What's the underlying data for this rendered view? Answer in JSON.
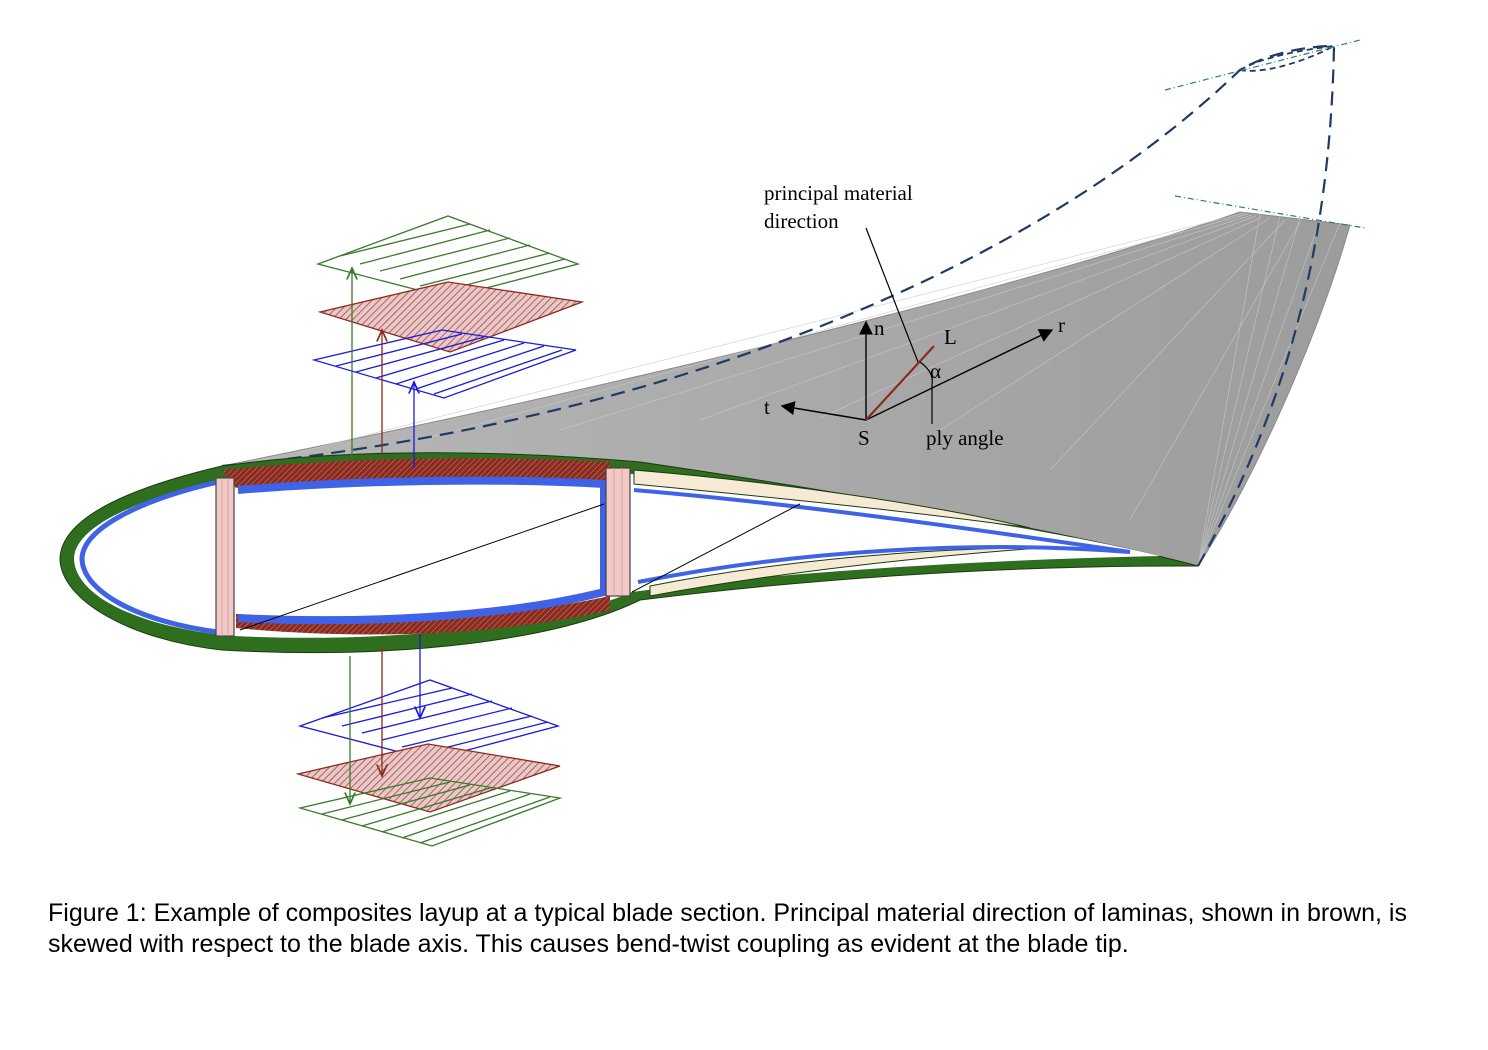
{
  "labels": {
    "principal_line1": "principal material",
    "principal_line2": "direction",
    "n": "n",
    "L": "L",
    "r": "r",
    "t": "t",
    "S": "S",
    "alpha": "α",
    "ply_angle": "ply angle"
  },
  "caption": "Figure 1: Example of composites layup at a typical blade section. Principal material direction of laminas, shown in brown, is skewed with respect to the blade axis.  This causes bend-twist coupling as evident at the blade tip.",
  "colors": {
    "skin_green": "#2f6e1e",
    "laminate_brown": "#8b2a1e",
    "inner_blue": "#3e63e6",
    "spar_pink": "#f2c9c6",
    "core_cream": "#f6ead4",
    "blade_gray": "#a9a9a9",
    "dashed_navy": "#1f3a64",
    "ply_green": "#3a7a2a",
    "ply_brown": "#8b2a1e",
    "ply_blue": "#1a1ad8"
  }
}
